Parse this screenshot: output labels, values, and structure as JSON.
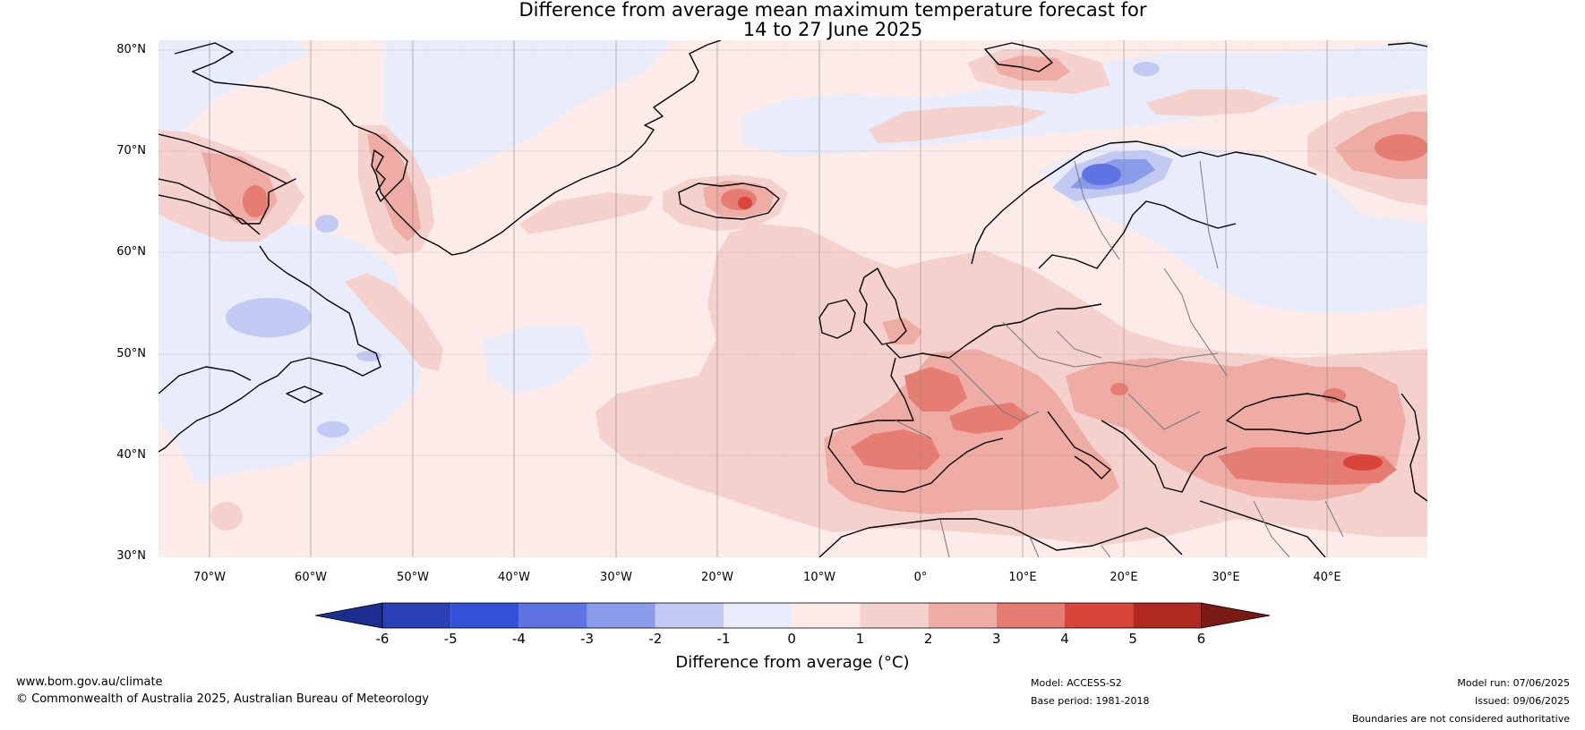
{
  "title_line1": "Difference from average mean maximum temperature forecast for",
  "title_line2": "14 to 27 June 2025",
  "lat_labels": [
    "80°N",
    "70°N",
    "60°N",
    "50°N",
    "40°N",
    "30°N"
  ],
  "lon_labels": [
    "70°W",
    "60°W",
    "50°W",
    "40°W",
    "30°W",
    "20°W",
    "10°W",
    "0°",
    "10°E",
    "20°E",
    "30°E",
    "40°E"
  ],
  "colorbar": {
    "ticks": [
      "-6",
      "-5",
      "-4",
      "-3",
      "-2",
      "-1",
      "0",
      "1",
      "2",
      "3",
      "4",
      "5",
      "6"
    ],
    "colors": [
      "#1c2c8f",
      "#2a41b6",
      "#3251d6",
      "#5f73e2",
      "#8a9bea",
      "#c2c9f2",
      "#e9ecfb",
      "#fcebe9",
      "#f5d1cd",
      "#eeaca5",
      "#e57d73",
      "#d9453b",
      "#b12a22",
      "#7a1a14"
    ],
    "label": "Difference from average (°C)"
  },
  "footer": {
    "website": "www.bom.gov.au/climate",
    "copyright": "© Commonwealth of Australia 2025, Australian Bureau of Meteorology",
    "model": "Model: ACCESS-S2",
    "base_period": "Base period: 1981-2018",
    "model_run": "Model run: 07/06/2025",
    "issued": "Issued: 09/06/2025",
    "disclaimer": "Boundaries are not considered authoritative"
  }
}
